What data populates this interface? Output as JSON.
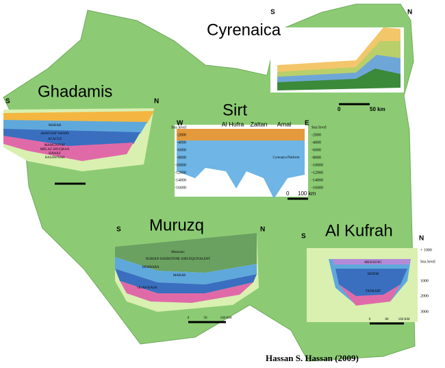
{
  "credit": "Hassan S. Hassan (2009)",
  "sections": [
    {
      "name": "Cyrenaica",
      "left": "S",
      "right": "N",
      "scale": [
        "0",
        "50 km"
      ]
    },
    {
      "name": "Ghadamis",
      "left": "S",
      "right": "N",
      "units": [
        "MABAR",
        "AWAYNAT WANIN",
        "ACACUS",
        "MAMUNIYAT",
        "MELAZ SHUQRAN",
        "HAWAZ",
        "HASAWNAH"
      ]
    },
    {
      "name": "Sirt",
      "left": "W",
      "right": "E",
      "wells": [
        "Al Hufra",
        "Zaltan",
        "Amal"
      ],
      "depths": [
        "Sea level",
        "-2000",
        "-4000",
        "-6000",
        "-8000",
        "-10000",
        "-12000",
        "-14000",
        "-16000"
      ],
      "scale": [
        "0",
        "100 km"
      ],
      "platform": "Cyrenaica Platform"
    },
    {
      "name": "Muruzq",
      "left": "S",
      "right": "N",
      "units": [
        "Mesozoic",
        "NUBIAN SANDSTONE AND EQUIVALENT",
        "DEMBABA",
        "MARAR",
        "OUAN KASA"
      ],
      "scale": [
        "0",
        "50",
        "100 KM"
      ]
    },
    {
      "name": "Al Kufrah",
      "left": "S",
      "right": "N",
      "depths": [
        "+ 1000",
        "Sea level",
        "1000",
        "2000",
        "3000"
      ],
      "units": [
        "MESOZOIC",
        "BINEM",
        "TADRART"
      ],
      "scale": [
        "0",
        "80",
        "160 KM"
      ]
    }
  ]
}
